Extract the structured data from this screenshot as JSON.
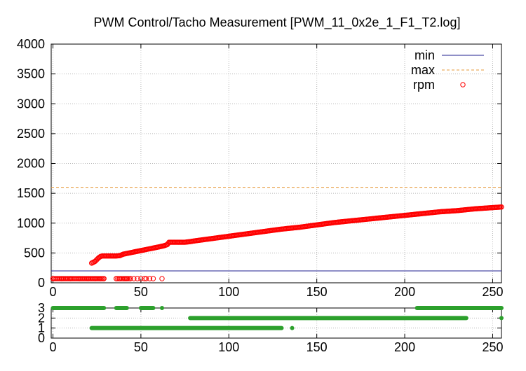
{
  "chart_data": [
    {
      "type": "scatter",
      "title": "PWM Control/Tacho Measurement [PWM_11_0x2e_1_F1_T2.log]",
      "xlabel": "",
      "ylabel": "",
      "xlim": [
        -1,
        255
      ],
      "ylim": [
        0,
        4000
      ],
      "x_ticks": [
        "0",
        "50",
        "100",
        "150",
        "200",
        "250"
      ],
      "y_ticks": [
        "0",
        "500",
        "1000",
        "1500",
        "2000",
        "2500",
        "3000",
        "3500",
        "4000"
      ],
      "grid": true,
      "legend_position": "top-right",
      "series": [
        {
          "name": "min",
          "style": "line",
          "color": "#1f1f8f",
          "values": [
            [
              -1,
              200
            ],
            [
              255,
              200
            ]
          ]
        },
        {
          "name": "max",
          "style": "dashed-line",
          "color": "#e69a3a",
          "values": [
            [
              -1,
              1600
            ],
            [
              255,
              1600
            ]
          ]
        },
        {
          "name": "rpm",
          "style": "points-open-circle",
          "color": "#ff0000",
          "values": [
            [
              0,
              70
            ],
            [
              5,
              70
            ],
            [
              10,
              70
            ],
            [
              15,
              70
            ],
            [
              20,
              70
            ],
            [
              24,
              70
            ],
            [
              27,
              70
            ],
            [
              29,
              70
            ],
            [
              36,
              70
            ],
            [
              38,
              70
            ],
            [
              40,
              70
            ],
            [
              41,
              70
            ],
            [
              42,
              70
            ],
            [
              44,
              70
            ],
            [
              46,
              70
            ],
            [
              48,
              70
            ],
            [
              50,
              70
            ],
            [
              52,
              70
            ],
            [
              53,
              70
            ],
            [
              55,
              70
            ],
            [
              57,
              70
            ],
            [
              62,
              70
            ],
            [
              22,
              330
            ],
            [
              24,
              360
            ],
            [
              25,
              390
            ],
            [
              26,
              420
            ],
            [
              27,
              440
            ],
            [
              28,
              450
            ],
            [
              30,
              450
            ],
            [
              32,
              450
            ],
            [
              34,
              450
            ],
            [
              36,
              450
            ],
            [
              38,
              455
            ],
            [
              40,
              480
            ],
            [
              45,
              510
            ],
            [
              50,
              540
            ],
            [
              55,
              570
            ],
            [
              60,
              600
            ],
            [
              63,
              620
            ],
            [
              65,
              640
            ],
            [
              66,
              680
            ],
            [
              70,
              680
            ],
            [
              75,
              680
            ],
            [
              78,
              690
            ],
            [
              80,
              700
            ],
            [
              90,
              740
            ],
            [
              100,
              780
            ],
            [
              110,
              820
            ],
            [
              120,
              860
            ],
            [
              130,
              900
            ],
            [
              140,
              930
            ],
            [
              150,
              970
            ],
            [
              160,
              1010
            ],
            [
              170,
              1040
            ],
            [
              180,
              1070
            ],
            [
              190,
              1100
            ],
            [
              200,
              1130
            ],
            [
              210,
              1160
            ],
            [
              220,
              1190
            ],
            [
              230,
              1210
            ],
            [
              240,
              1240
            ],
            [
              250,
              1260
            ],
            [
              255,
              1270
            ]
          ]
        }
      ]
    },
    {
      "type": "scatter",
      "xlim": [
        -1,
        255
      ],
      "ylim": [
        0,
        3
      ],
      "x_ticks": [
        "0",
        "50",
        "100",
        "150",
        "200",
        "250"
      ],
      "y_ticks": [
        "0",
        "1",
        "2",
        "3"
      ],
      "grid": true,
      "series": [
        {
          "color": "#2ca02c",
          "style": "points-filled",
          "segments": [
            {
              "y": 3,
              "x_start": 0,
              "x_end": 29
            },
            {
              "y": 3,
              "x_start": 36,
              "x_end": 42
            },
            {
              "y": 3,
              "x_start": 50,
              "x_end": 57
            },
            {
              "y": 3,
              "x_start": 62,
              "x_end": 62
            },
            {
              "y": 3,
              "x_start": 207,
              "x_end": 255
            },
            {
              "y": 2,
              "x_start": 78,
              "x_end": 235
            },
            {
              "y": 2,
              "x_start": 255,
              "x_end": 255
            },
            {
              "y": 1,
              "x_start": 22,
              "x_end": 130
            },
            {
              "y": 1,
              "x_start": 136,
              "x_end": 136
            }
          ]
        }
      ]
    }
  ]
}
